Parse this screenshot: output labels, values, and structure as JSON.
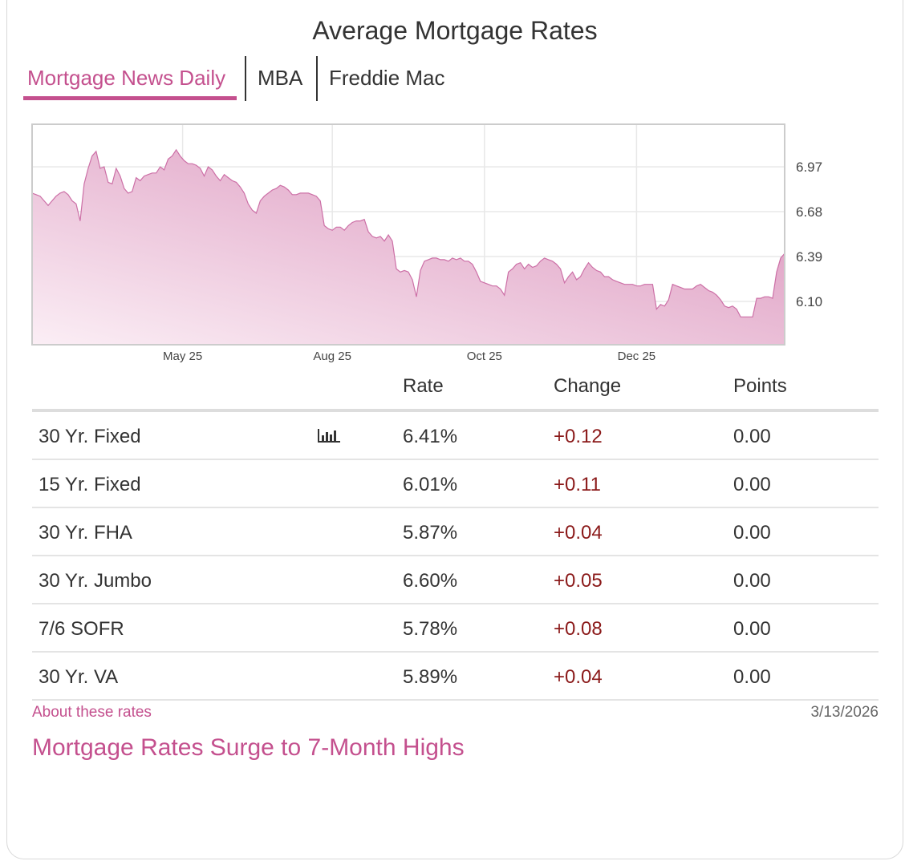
{
  "title": "Average Mortgage Rates",
  "tabs": [
    {
      "label": "Mortgage News Daily",
      "active": true
    },
    {
      "label": "MBA",
      "active": false
    },
    {
      "label": "Freddie Mac",
      "active": false
    }
  ],
  "colors": {
    "accent": "#c4508e",
    "area_top": "#d98fb9",
    "area_bottom": "#fbeef5",
    "change_positive": "#8b1a1a"
  },
  "chart_data": {
    "type": "area",
    "title": "",
    "xlabel": "",
    "ylabel": "",
    "ylim": [
      5.82,
      7.245
    ],
    "y_ticks": [
      6.1,
      6.39,
      6.68,
      6.97
    ],
    "y_tick_labels": [
      "6.10",
      "6.39",
      "6.68",
      "6.97"
    ],
    "x_ticks": [
      {
        "label": "May 25",
        "index": 37.6
      },
      {
        "label": "Aug 25",
        "index": 75
      },
      {
        "label": "Oct 25",
        "index": 113
      },
      {
        "label": "Dec 25",
        "index": 151
      }
    ],
    "grid": true,
    "series": [
      {
        "name": "30 Yr. Fixed",
        "values": [
          6.8,
          6.79,
          6.78,
          6.75,
          6.72,
          6.75,
          6.78,
          6.8,
          6.81,
          6.79,
          6.75,
          6.73,
          6.62,
          6.86,
          6.96,
          7.04,
          7.07,
          6.96,
          6.97,
          6.87,
          6.86,
          6.96,
          6.91,
          6.83,
          6.8,
          6.81,
          6.9,
          6.88,
          6.91,
          6.92,
          6.93,
          6.93,
          6.97,
          6.95,
          7.02,
          7.04,
          7.08,
          7.04,
          7.01,
          6.99,
          6.99,
          6.98,
          6.96,
          6.91,
          6.97,
          6.95,
          6.91,
          6.88,
          6.92,
          6.9,
          6.88,
          6.87,
          6.84,
          6.8,
          6.73,
          6.69,
          6.67,
          6.75,
          6.78,
          6.8,
          6.82,
          6.83,
          6.85,
          6.84,
          6.82,
          6.79,
          6.79,
          6.8,
          6.8,
          6.8,
          6.79,
          6.78,
          6.75,
          6.59,
          6.57,
          6.56,
          6.58,
          6.58,
          6.56,
          6.59,
          6.61,
          6.62,
          6.62,
          6.63,
          6.55,
          6.52,
          6.51,
          6.52,
          6.49,
          6.53,
          6.49,
          6.31,
          6.29,
          6.3,
          6.29,
          6.24,
          6.13,
          6.3,
          6.36,
          6.37,
          6.38,
          6.38,
          6.37,
          6.37,
          6.36,
          6.38,
          6.37,
          6.38,
          6.36,
          6.36,
          6.34,
          6.29,
          6.23,
          6.22,
          6.21,
          6.2,
          6.2,
          6.18,
          6.14,
          6.29,
          6.31,
          6.34,
          6.35,
          6.31,
          6.34,
          6.32,
          6.33,
          6.36,
          6.38,
          6.37,
          6.36,
          6.34,
          6.31,
          6.22,
          6.26,
          6.29,
          6.24,
          6.26,
          6.31,
          6.35,
          6.32,
          6.3,
          6.29,
          6.26,
          6.26,
          6.24,
          6.23,
          6.22,
          6.21,
          6.21,
          6.21,
          6.2,
          6.2,
          6.21,
          6.21,
          6.21,
          6.05,
          6.08,
          6.07,
          6.11,
          6.21,
          6.2,
          6.19,
          6.18,
          6.18,
          6.18,
          6.2,
          6.21,
          6.19,
          6.17,
          6.16,
          6.14,
          6.11,
          6.07,
          6.06,
          6.07,
          6.05,
          6.0,
          6.0,
          6.0,
          6.0,
          6.12,
          6.12,
          6.13,
          6.13,
          6.12,
          6.29,
          6.38,
          6.41
        ]
      }
    ]
  },
  "table": {
    "headers": {
      "rate": "Rate",
      "change": "Change",
      "points": "Points"
    },
    "rows": [
      {
        "name": "30 Yr. Fixed",
        "rate": "6.41%",
        "change": "+0.12",
        "points": "0.00",
        "chart_icon": "bar-chart-icon"
      },
      {
        "name": "15 Yr. Fixed",
        "rate": "6.01%",
        "change": "+0.11",
        "points": "0.00"
      },
      {
        "name": "30 Yr. FHA",
        "rate": "5.87%",
        "change": "+0.04",
        "points": "0.00"
      },
      {
        "name": "30 Yr. Jumbo",
        "rate": "6.60%",
        "change": "+0.05",
        "points": "0.00"
      },
      {
        "name": "7/6 SOFR",
        "rate": "5.78%",
        "change": "+0.08",
        "points": "0.00"
      },
      {
        "name": "30 Yr. VA",
        "rate": "5.89%",
        "change": "+0.04",
        "points": "0.00"
      }
    ]
  },
  "footer": {
    "about_link": "About these rates",
    "date": "3/13/2026",
    "headline": "Mortgage Rates Surge to 7-Month Highs"
  }
}
